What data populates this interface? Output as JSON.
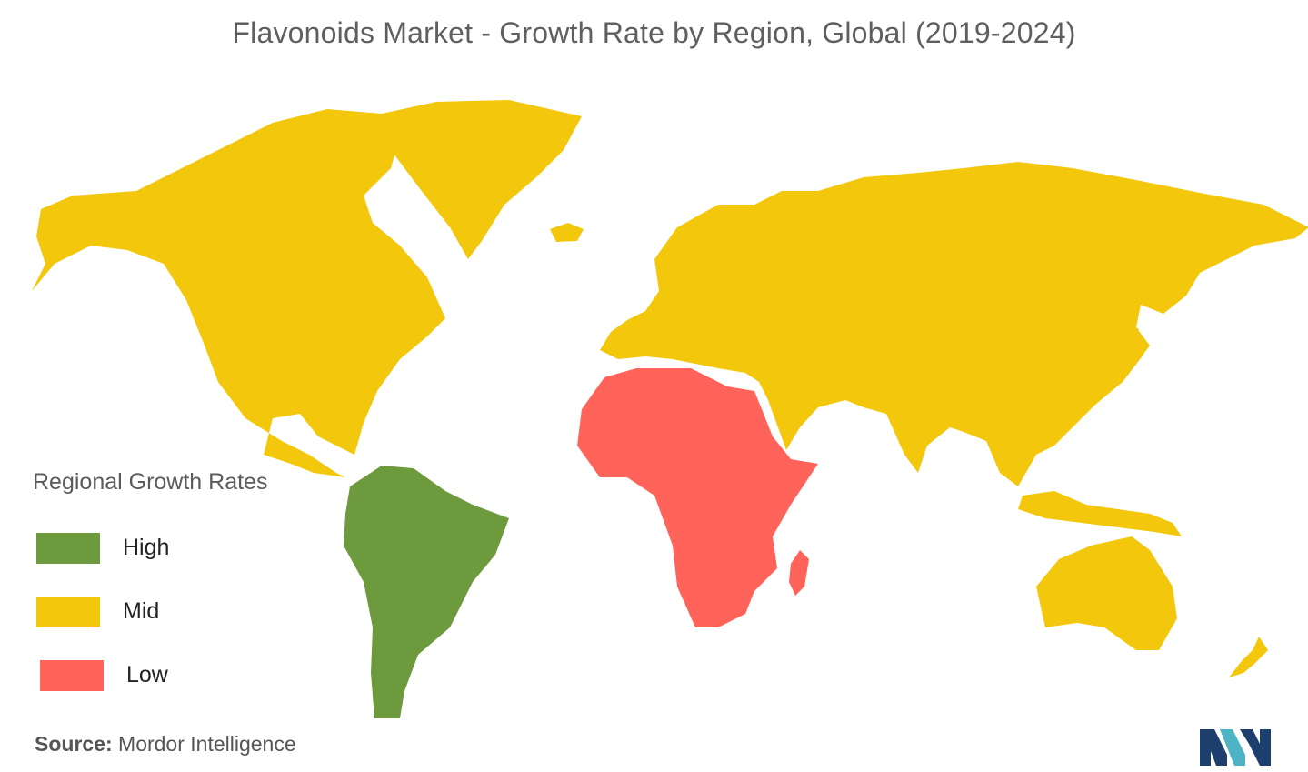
{
  "title": "Flavonoids Market - Growth Rate by Region, Global (2019-2024)",
  "legend": {
    "title": "Regional Growth Rates",
    "items": [
      {
        "key": "high",
        "label": "High",
        "color": "#6e9a3e"
      },
      {
        "key": "mid",
        "label": "Mid",
        "color": "#f3c80c"
      },
      {
        "key": "low",
        "label": "Low",
        "color": "#ff6359"
      }
    ]
  },
  "regions": [
    {
      "name": "North America",
      "level": "mid"
    },
    {
      "name": "Greenland",
      "level": "mid"
    },
    {
      "name": "Europe and Asia",
      "level": "mid"
    },
    {
      "name": "Oceania",
      "level": "mid"
    },
    {
      "name": "South America",
      "level": "high"
    },
    {
      "name": "Africa",
      "level": "low"
    }
  ],
  "source": {
    "label": "Source:",
    "text": "Mordor Intelligence"
  },
  "logo": {
    "icon": "mordor-intelligence-logo",
    "colors": [
      "#1d3f6e",
      "#4fb3c6"
    ]
  }
}
